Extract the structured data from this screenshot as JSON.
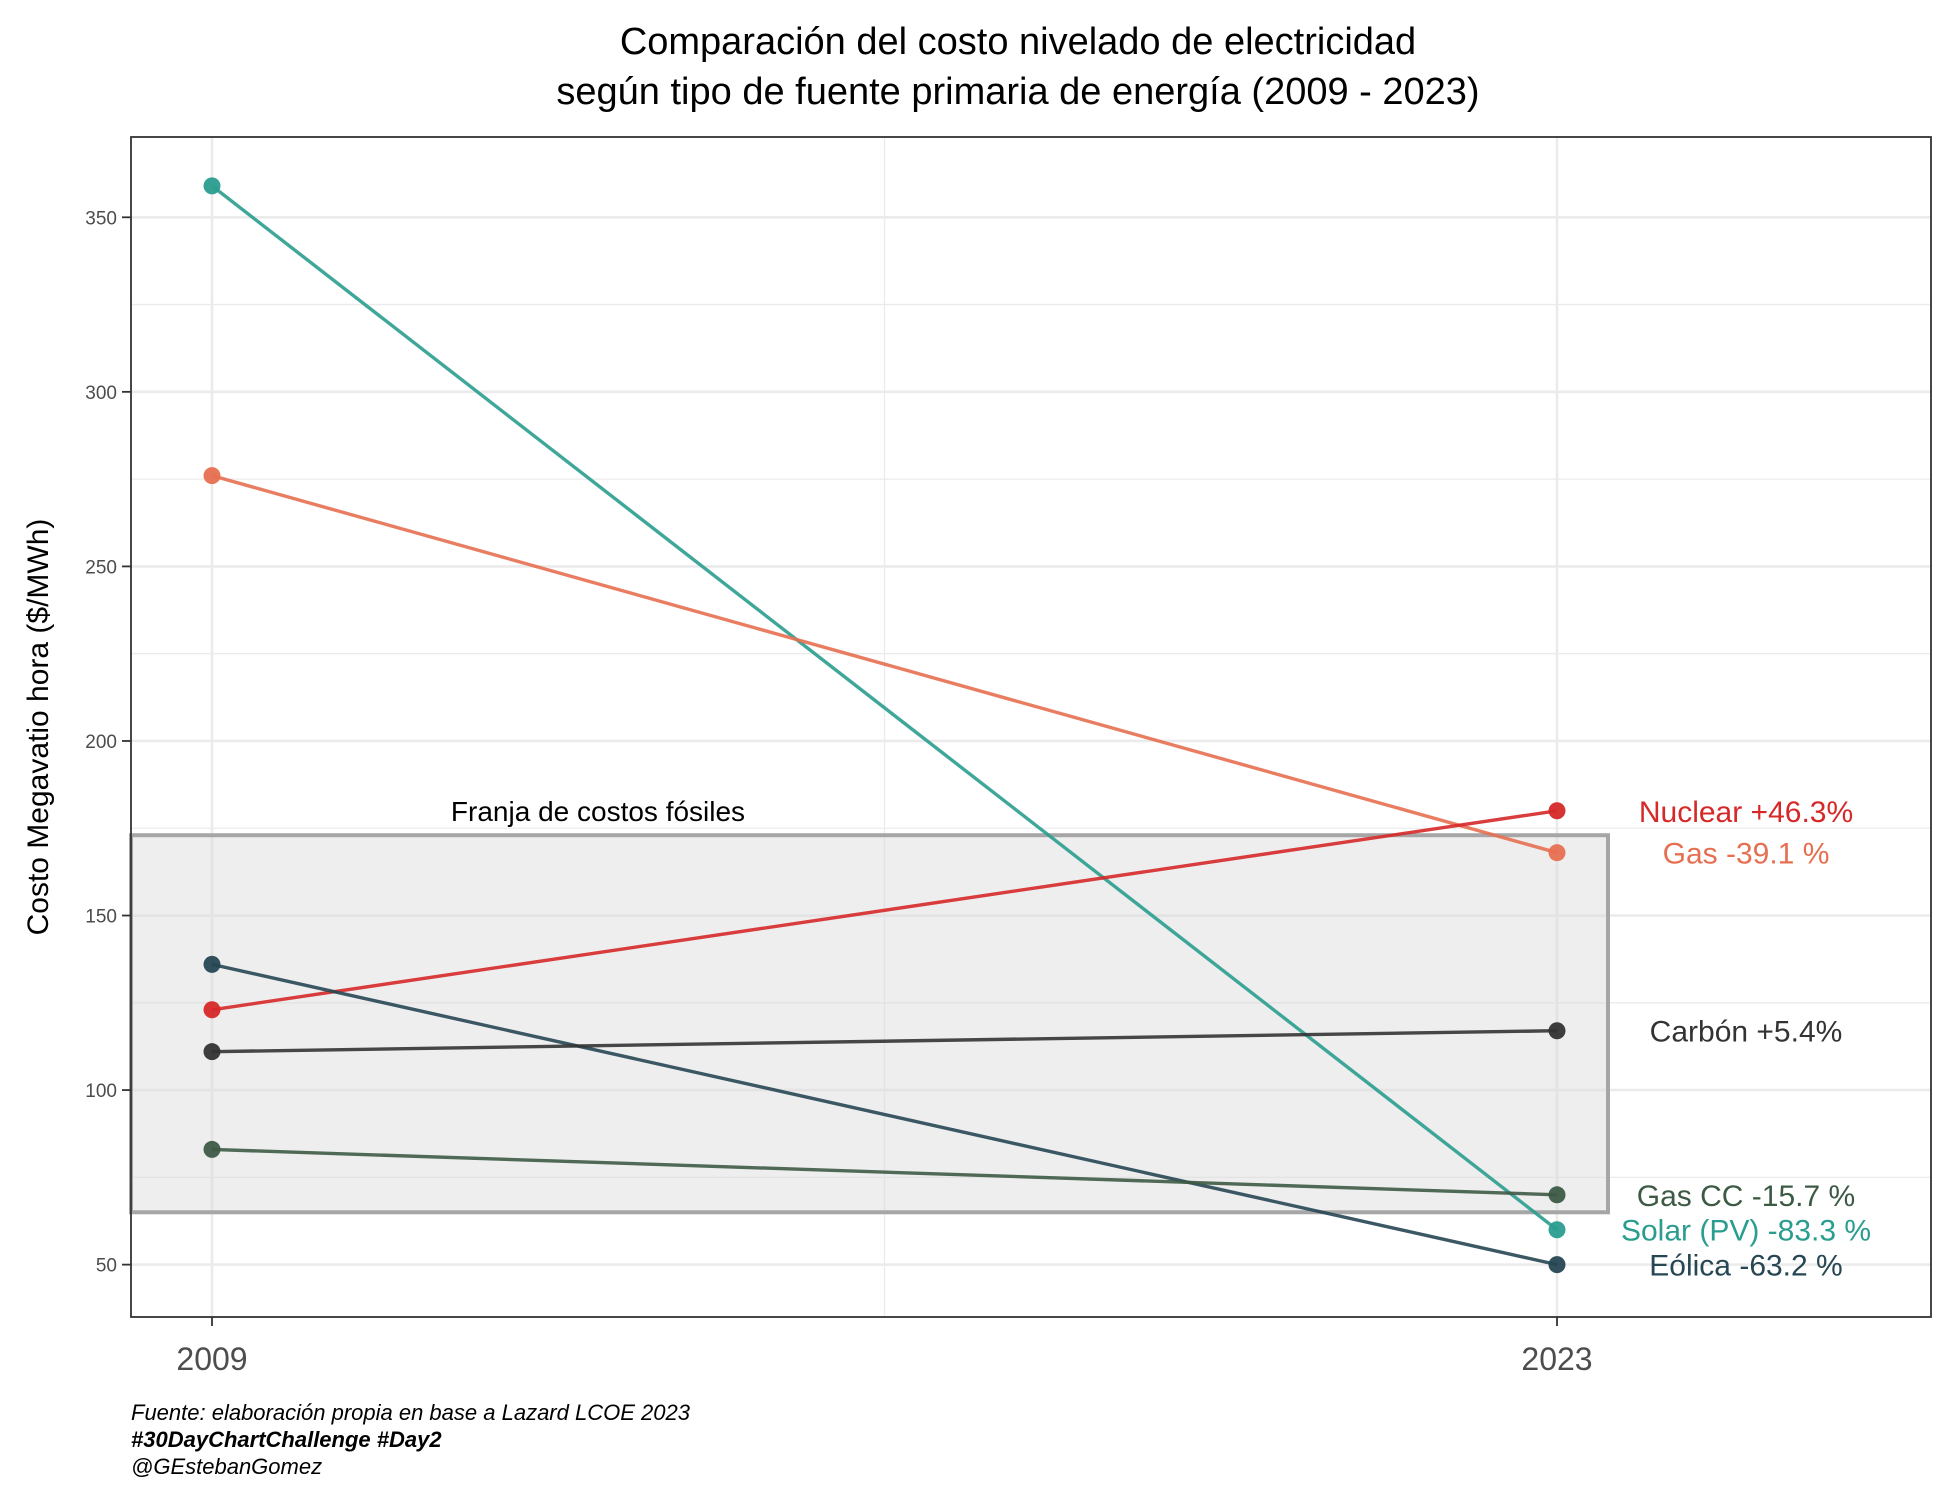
{
  "chart_data": {
    "type": "line",
    "title_lines": [
      "Comparación del costo nivelado de electricidad",
      "según tipo de fuente primaria de energía (2009 - 2023)"
    ],
    "ylabel": "Costo Megavatio hora ($/MWh)",
    "xlabel": "",
    "categories": [
      "2009",
      "2023"
    ],
    "ylim": [
      35,
      373
    ],
    "yticks": [
      50,
      100,
      150,
      200,
      250,
      300,
      350
    ],
    "grid": true,
    "band": {
      "ymin": 65,
      "ymax": 173,
      "label": "Franja de costos fósiles"
    },
    "series": [
      {
        "name": "Solar (PV)",
        "label": "Solar (PV) -83.3 %",
        "values": [
          359,
          60
        ],
        "color": "#2a9d8f"
      },
      {
        "name": "Gas",
        "label": "Gas -39.1 %",
        "values": [
          276,
          168
        ],
        "color": "#e76f51"
      },
      {
        "name": "Nuclear",
        "label": "Nuclear +46.3%",
        "values": [
          123,
          180
        ],
        "color": "#d62828"
      },
      {
        "name": "Eólica",
        "label": "Eólica -63.2 %",
        "values": [
          136,
          50
        ],
        "color": "#264653"
      },
      {
        "name": "Carbón",
        "label": "Carbón +5.4%",
        "values": [
          111,
          117
        ],
        "color": "#333333"
      },
      {
        "name": "Gas CC",
        "label": "Gas CC -15.7 %",
        "values": [
          83,
          70
        ],
        "color": "#3d5a45"
      }
    ],
    "caption": {
      "source": "Fuente: elaboración propia en base a Lazard LCOE 2023",
      "tag": "#30DayChartChallenge #Day2",
      "author": "@GEstebanGomez"
    }
  }
}
